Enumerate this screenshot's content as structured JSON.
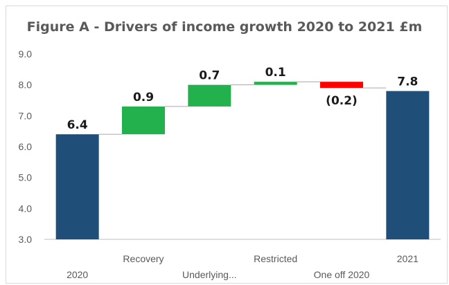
{
  "chart_data": {
    "type": "bar",
    "subtype": "waterfall",
    "title": "Figure A - Drivers of income growth 2020 to 2021 £m",
    "xlabel": "",
    "ylabel": "",
    "ylim": [
      3.0,
      9.0
    ],
    "yticks": [
      "3.0",
      "4.0",
      "5.0",
      "6.0",
      "7.0",
      "8.0",
      "9.0"
    ],
    "grid": false,
    "legend": "none",
    "categories": [
      "2020",
      "Recovery",
      "Underlying...",
      "Restricted",
      "One off 2020",
      "2021"
    ],
    "values": [
      6.4,
      0.9,
      0.7,
      0.1,
      -0.2,
      7.8
    ],
    "kinds": [
      "total",
      "increase",
      "increase",
      "increase",
      "decrease",
      "total"
    ],
    "data_labels": [
      "6.4",
      "0.9",
      "0.7",
      "0.1",
      "(0.2)",
      "7.8"
    ],
    "colors": {
      "total": "#1f4e79",
      "increase": "#22b14c",
      "decrease": "#ff0000",
      "connector": "#a6a6a6",
      "axis": "#bfbfbf"
    }
  }
}
